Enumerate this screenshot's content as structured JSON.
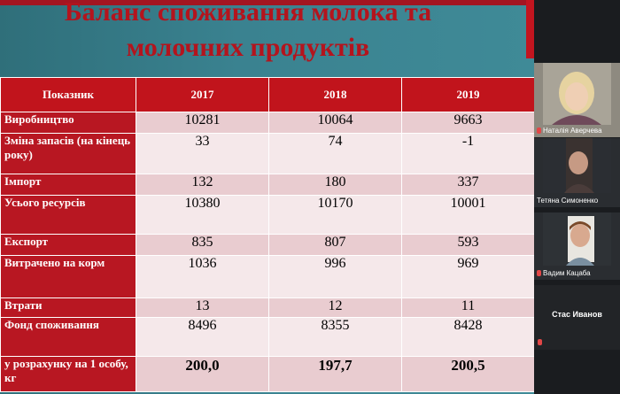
{
  "slide": {
    "title_line1": "Баланс споживання молока та",
    "title_line2": "молочних продуктів",
    "colors": {
      "title": "#b4141d",
      "header_bg": "#c1141c",
      "row_label_bg": "#b81722",
      "row_odd_bg": "#e9ccd0",
      "row_even_bg": "#f5e8ea"
    }
  },
  "table": {
    "headers": [
      "Показник",
      "2017",
      "2018",
      "2019"
    ],
    "rows": [
      {
        "label": "Виробництво",
        "values": [
          "10281",
          "10064",
          "9663"
        ]
      },
      {
        "label": "Зміна запасів (на кінець року)",
        "values": [
          "33",
          "74",
          "-1"
        ]
      },
      {
        "label": "Імпорт",
        "values": [
          "132",
          "180",
          "337"
        ]
      },
      {
        "label": "Усього ресурсів",
        "values": [
          "10380",
          "10170",
          "10001"
        ]
      },
      {
        "label": "Експорт",
        "values": [
          "835",
          "807",
          "593"
        ]
      },
      {
        "label": "Витрачено на корм",
        "values": [
          "1036",
          "996",
          "969"
        ]
      },
      {
        "label": "Втрати",
        "values": [
          "13",
          "12",
          "11"
        ]
      },
      {
        "label": "Фонд споживання",
        "values": [
          "8496",
          "8355",
          "8428"
        ]
      },
      {
        "label": "у розрахунку на 1 особу, кг",
        "values": [
          "200,0",
          "197,7",
          "200,5"
        ]
      }
    ]
  },
  "participants": [
    {
      "name": "Наталія Аверчева",
      "muted": true,
      "video": true
    },
    {
      "name": "Тетяна Симоненко",
      "muted": false,
      "video": true
    },
    {
      "name": "Вадим Кацаба",
      "muted": true,
      "video": true
    },
    {
      "name": "Стас Иванов",
      "muted": true,
      "video": false
    }
  ]
}
